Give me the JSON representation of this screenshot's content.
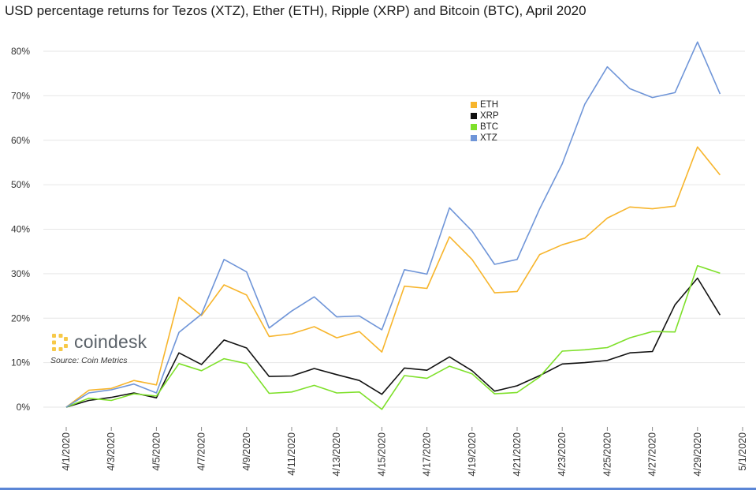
{
  "chart_data": {
    "type": "line",
    "title": "USD percentage returns for Tezos (XTZ), Ether (ETH), Ripple (XRP) and Bitcoin (BTC),  April 2020",
    "xlabel": "",
    "ylabel": "",
    "x": [
      "4/1/2020",
      "4/2/2020",
      "4/3/2020",
      "4/4/2020",
      "4/5/2020",
      "4/6/2020",
      "4/7/2020",
      "4/8/2020",
      "4/9/2020",
      "4/10/2020",
      "4/11/2020",
      "4/12/2020",
      "4/13/2020",
      "4/14/2020",
      "4/15/2020",
      "4/16/2020",
      "4/17/2020",
      "4/18/2020",
      "4/19/2020",
      "4/20/2020",
      "4/21/2020",
      "4/22/2020",
      "4/23/2020",
      "4/24/2020",
      "4/25/2020",
      "4/26/2020",
      "4/27/2020",
      "4/28/2020",
      "4/29/2020",
      "4/30/2020"
    ],
    "x_ticks": [
      "4/1/2020",
      "4/3/2020",
      "4/5/2020",
      "4/7/2020",
      "4/9/2020",
      "4/11/2020",
      "4/13/2020",
      "4/15/2020",
      "4/17/2020",
      "4/19/2020",
      "4/21/2020",
      "4/23/2020",
      "4/25/2020",
      "4/27/2020",
      "4/29/2020",
      "5/1/2020"
    ],
    "y_ticks": [
      0,
      10,
      20,
      30,
      40,
      50,
      60,
      70,
      80
    ],
    "y_tick_labels": [
      "0%",
      "10%",
      "20%",
      "30%",
      "40%",
      "50%",
      "60%",
      "70%",
      "80%"
    ],
    "ylim": [
      -5,
      87
    ],
    "grid": true,
    "legend_position": "top-center",
    "series": [
      {
        "name": "ETH",
        "color": "#f7b52c",
        "values": [
          0,
          3.8,
          4.2,
          6.0,
          5.0,
          24.7,
          20.6,
          27.5,
          25.2,
          15.9,
          16.5,
          18.1,
          15.6,
          17.0,
          12.4,
          27.2,
          26.7,
          38.3,
          33.2,
          25.7,
          26.0,
          34.3,
          36.5,
          38.0,
          42.5,
          45.0,
          44.6,
          45.2,
          58.5,
          52.2
        ]
      },
      {
        "name": "XRP",
        "color": "#111111",
        "values": [
          0,
          1.5,
          2.2,
          3.2,
          2.1,
          12.2,
          9.6,
          15.1,
          13.3,
          6.9,
          7.0,
          8.7,
          7.3,
          6.0,
          2.9,
          8.8,
          8.3,
          11.3,
          8.2,
          3.6,
          4.8,
          7.1,
          9.7,
          10.0,
          10.5,
          12.2,
          12.5,
          23.0,
          29.0,
          20.7
        ]
      },
      {
        "name": "BTC",
        "color": "#7ee02a",
        "values": [
          0,
          2.0,
          1.5,
          3.0,
          2.5,
          9.8,
          8.2,
          10.9,
          9.8,
          3.1,
          3.4,
          4.9,
          3.2,
          3.4,
          -0.5,
          7.1,
          6.5,
          9.2,
          7.5,
          3.0,
          3.3,
          6.8,
          12.6,
          12.9,
          13.4,
          15.6,
          17.0,
          16.9,
          31.8,
          30.1
        ]
      },
      {
        "name": "XTZ",
        "color": "#6f95d8",
        "values": [
          0,
          3.2,
          3.9,
          5.2,
          3.2,
          16.8,
          20.9,
          33.2,
          30.4,
          17.8,
          21.6,
          24.8,
          20.3,
          20.5,
          17.4,
          30.9,
          29.9,
          44.8,
          39.6,
          32.1,
          33.2,
          44.6,
          54.7,
          68.1,
          76.5,
          71.6,
          69.6,
          70.7,
          82.1,
          70.4
        ]
      }
    ]
  },
  "brand": {
    "name": "coindesk",
    "source": "Source: Coin Metrics"
  }
}
